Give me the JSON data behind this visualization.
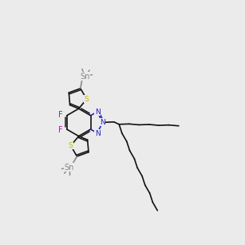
{
  "bg_color": "#ebebeb",
  "bond_color": "#111111",
  "S_color": "#bbbb00",
  "N_color": "#2222bb",
  "F_color": "#cc00cc",
  "Sn_color": "#888888",
  "lw": 1.2,
  "dbo": 0.006,
  "fs": 6.5
}
